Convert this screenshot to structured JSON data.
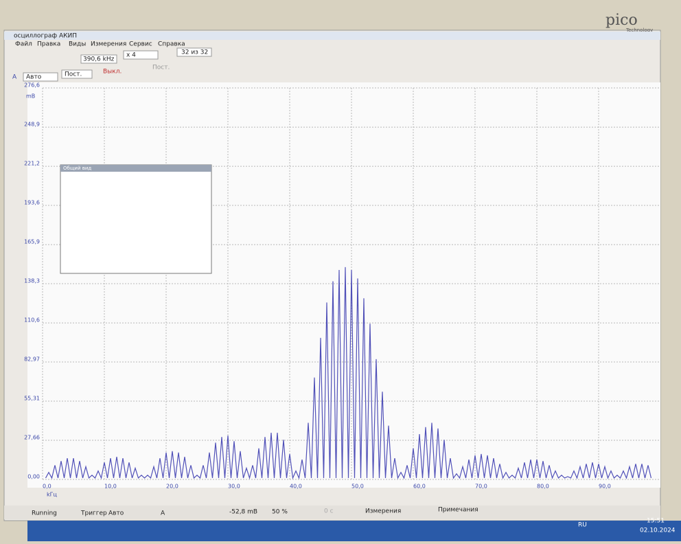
{
  "window": {
    "title": "осциллограф АКИП",
    "menu": [
      "Файл",
      "Правка",
      "Виды",
      "Измерения",
      "Сервис",
      "Справка"
    ],
    "toolbar": {
      "frequency": "390,6 kHz",
      "zoom": "x 4",
      "buffer": "32 из 32"
    },
    "channel": {
      "name": "A",
      "range": "Авто",
      "coupling": "Пост.",
      "filter": "Выкл.",
      "filter_mode": "Пост."
    },
    "logo": {
      "name": "pico",
      "subtitle": "Technology"
    },
    "overview": {
      "title": "Общий вид"
    },
    "status": {
      "state": "Running",
      "trigger": "Триггер",
      "trigger_mode": "Авто",
      "trigger_channel": "A",
      "level": "-52,8 mB",
      "pretrigger": "50 %",
      "delay": "0 с",
      "measurements": "Измерения",
      "notes": "Примечания"
    },
    "taskbar": {
      "language": "RU",
      "time": "15:51",
      "date": "02.10.2024"
    }
  },
  "chart_data": {
    "type": "line",
    "y_unit": "mB",
    "x_unit": "kГц",
    "color": "#5050b8",
    "x": [
      0.5,
      1,
      1.5,
      2,
      2.5,
      3,
      3.5,
      4,
      4.5,
      5,
      5.5,
      6,
      6.5,
      7,
      7.5,
      8,
      8.5,
      9,
      9.5,
      10,
      10.5,
      11,
      11.5,
      12,
      12.5,
      13,
      13.5,
      14,
      14.5,
      15,
      15.5,
      16,
      16.5,
      17,
      17.5,
      18,
      18.5,
      19,
      19.5,
      20,
      20.5,
      21,
      21.5,
      22,
      22.5,
      23,
      23.5,
      24,
      24.5,
      25,
      25.5,
      26,
      26.5,
      27,
      27.5,
      28,
      28.5,
      29,
      29.5,
      30,
      30.5,
      31,
      31.5,
      32,
      32.5,
      33,
      33.5,
      34,
      34.5,
      35,
      35.5,
      36,
      36.5,
      37,
      37.5,
      38,
      38.5,
      39,
      39.5,
      40,
      40.5,
      41,
      41.5,
      42,
      42.5,
      43,
      43.5,
      44,
      44.5,
      45,
      45.5,
      46,
      46.5,
      47,
      47.5,
      48,
      48.5,
      49,
      49.5,
      50,
      50.5,
      51,
      51.5,
      52,
      52.5,
      53,
      53.5,
      54,
      54.5,
      55,
      55.5,
      56,
      56.5,
      57,
      57.5,
      58,
      58.5,
      59,
      59.5,
      60,
      60.5,
      61,
      61.5,
      62,
      62.5,
      63,
      63.5,
      64,
      64.5,
      65,
      65.5,
      66,
      66.5,
      67,
      67.5,
      68,
      68.5,
      69,
      69.5,
      70,
      70.5,
      71,
      71.5,
      72,
      72.5,
      73,
      73.5,
      74,
      74.5,
      75,
      75.5,
      76,
      76.5,
      77,
      77.5,
      78,
      78.5,
      79,
      79.5,
      80,
      80.5,
      81,
      81.5,
      82,
      82.5,
      83,
      83.5,
      84,
      84.5,
      85,
      85.5,
      86,
      86.5,
      87,
      87.5,
      88,
      88.5,
      89,
      89.5,
      90,
      90.5,
      91,
      91.5,
      92,
      92.5,
      93,
      93.5,
      94,
      94.5,
      95,
      95.5,
      96,
      96.5,
      97,
      97.5,
      98,
      98.5
    ],
    "values": [
      1,
      5,
      1,
      10,
      1,
      13,
      1,
      15,
      1,
      15,
      1,
      13,
      1,
      9,
      1,
      3,
      1,
      6,
      1,
      12,
      1,
      15,
      1,
      16,
      1,
      15,
      1,
      12,
      1,
      8,
      1,
      3,
      1,
      3,
      1,
      9,
      1,
      15,
      1,
      19,
      1,
      20,
      1,
      19,
      1,
      16,
      1,
      10,
      1,
      3,
      1,
      10,
      1,
      19,
      1,
      26,
      1,
      30,
      1,
      31,
      1,
      27,
      1,
      20,
      1,
      8,
      1,
      10,
      1,
      22,
      1,
      30,
      1,
      33,
      1,
      33,
      1,
      28,
      1,
      18,
      1,
      6,
      1,
      14,
      1,
      40,
      1,
      72,
      1,
      100,
      1,
      125,
      1,
      140,
      1,
      148,
      1,
      150,
      1,
      148,
      1,
      142,
      1,
      128,
      1,
      110,
      1,
      85,
      1,
      62,
      1,
      38,
      1,
      15,
      1,
      5,
      1,
      10,
      1,
      22,
      1,
      32,
      1,
      37,
      1,
      40,
      1,
      36,
      1,
      28,
      1,
      15,
      1,
      4,
      1,
      9,
      1,
      14,
      1,
      17,
      1,
      18,
      1,
      17,
      1,
      15,
      1,
      11,
      1,
      5,
      1,
      3,
      1,
      8,
      1,
      12,
      1,
      14,
      1,
      14,
      1,
      13,
      1,
      10,
      1,
      6,
      1,
      3,
      1,
      2,
      1,
      6,
      1,
      9,
      1,
      11,
      1,
      12,
      1,
      11,
      1,
      9,
      1,
      6,
      1,
      3,
      1,
      6,
      1,
      9,
      1,
      11,
      1,
      11,
      1,
      10,
      1
    ],
    "xlim": [
      0,
      100
    ],
    "xticks": [
      {
        "value": 0,
        "label": "0,0"
      },
      {
        "value": 10,
        "label": "10,0"
      },
      {
        "value": 20,
        "label": "20,0"
      },
      {
        "value": 30,
        "label": "30,0"
      },
      {
        "value": 40,
        "label": "40,0"
      },
      {
        "value": 50,
        "label": "50,0"
      },
      {
        "value": 60,
        "label": "60,0"
      },
      {
        "value": 70,
        "label": "70,0"
      },
      {
        "value": 80,
        "label": "80,0"
      },
      {
        "value": 90,
        "label": "90,0"
      }
    ],
    "ylim": [
      0,
      276.6
    ],
    "yticks": [
      {
        "value": 0,
        "label": "0,00"
      },
      {
        "value": 27.66,
        "label": "27,66"
      },
      {
        "value": 55.31,
        "label": "55,31"
      },
      {
        "value": 82.97,
        "label": "82,97"
      },
      {
        "value": 110.6,
        "label": "110,6"
      },
      {
        "value": 138.3,
        "label": "138,3"
      },
      {
        "value": 165.9,
        "label": "165,9"
      },
      {
        "value": 193.6,
        "label": "193,6"
      },
      {
        "value": 221.2,
        "label": "221,2"
      },
      {
        "value": 248.9,
        "label": "248,9"
      },
      {
        "value": 276.6,
        "label": "276,6"
      }
    ],
    "grid": true
  }
}
